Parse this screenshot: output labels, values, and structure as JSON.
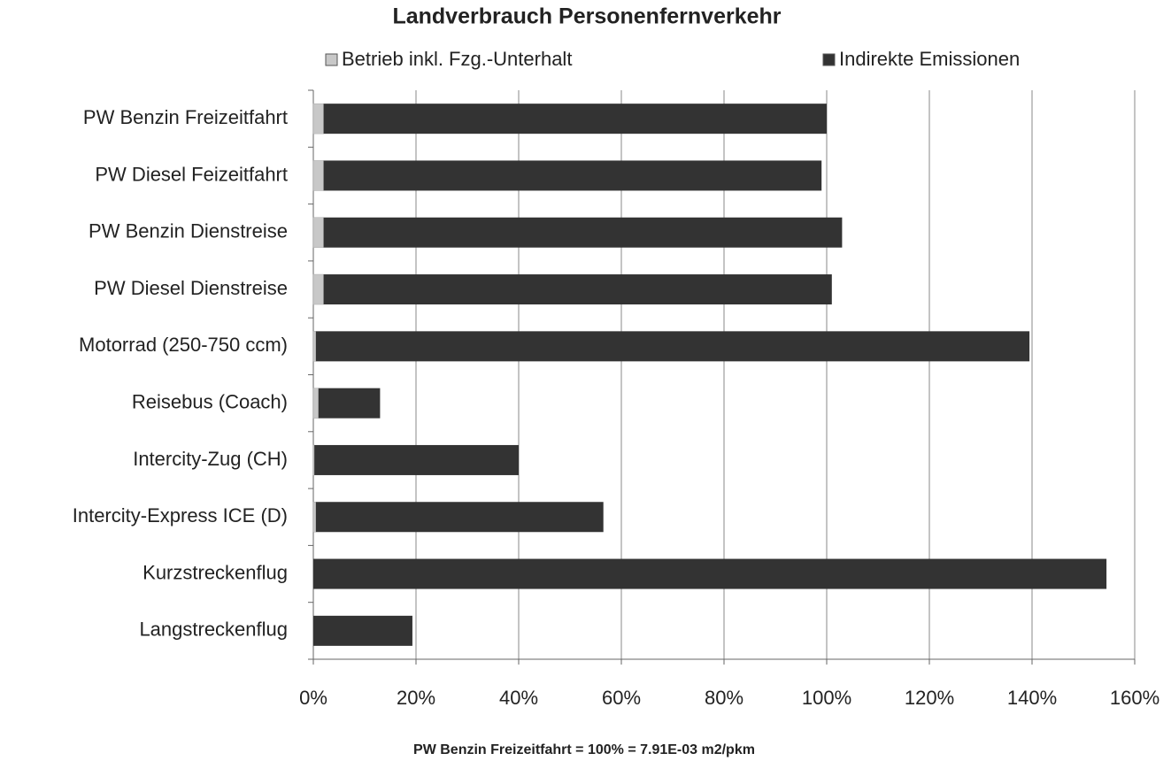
{
  "chart_data": {
    "type": "stacked_barh",
    "title": "Landverbrauch Personenfernverkehr",
    "note": "PW Benzin Freizeitfahrt = 100% = 7.91E-03 m2/pkm",
    "categories": [
      "PW Benzin Freizeitfahrt",
      "PW Diesel Feizeitfahrt",
      "PW Benzin Dienstreise",
      "PW Diesel Dienstreise",
      "Motorrad (250-750 ccm)",
      "Reisebus (Coach)",
      "Intercity-Zug (CH)",
      "Intercity-Express ICE (D)",
      "Kurzstreckenflug",
      "Langstreckenflug"
    ],
    "series": [
      {
        "name": "Betrieb inkl. Fzg.-Unterhalt",
        "color": "#c8c8c8",
        "values": [
          2,
          2,
          2,
          2,
          0.5,
          1,
          0.2,
          0.5,
          0,
          0
        ]
      },
      {
        "name": "Indirekte Emissionen",
        "color": "#333333",
        "values": [
          98,
          97,
          101,
          99,
          139,
          12,
          39.8,
          56,
          154.5,
          19.3
        ]
      }
    ],
    "xlim": [
      0,
      160
    ],
    "xticks": [
      {
        "value": 0,
        "label": "0%"
      },
      {
        "value": 20,
        "label": "20%"
      },
      {
        "value": 40,
        "label": "40%"
      },
      {
        "value": 60,
        "label": "60%"
      },
      {
        "value": 80,
        "label": "80%"
      },
      {
        "value": 100,
        "label": "100%"
      },
      {
        "value": 120,
        "label": "120%"
      },
      {
        "value": 140,
        "label": "140%"
      },
      {
        "value": 160,
        "label": "160%"
      }
    ],
    "grid": true
  }
}
